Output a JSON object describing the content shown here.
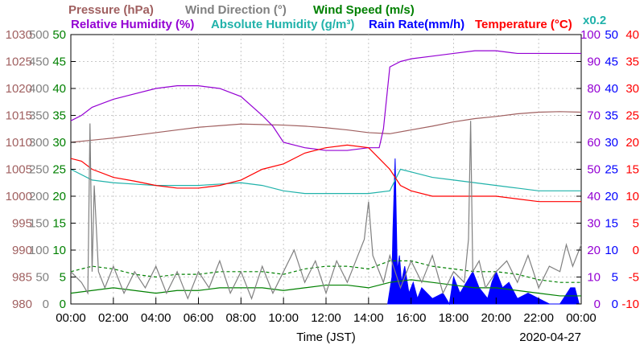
{
  "chart_data": {
    "type": "line",
    "date": "2020-04-27",
    "xlabel": "Time (JST)",
    "x_ticks": [
      "00:00",
      "02:00",
      "04:00",
      "06:00",
      "08:00",
      "10:00",
      "12:00",
      "14:00",
      "16:00",
      "18:00",
      "20:00",
      "22:00",
      "00:00"
    ],
    "x_range_hours": [
      0,
      24
    ],
    "grid": true,
    "legend": [
      {
        "label": "Pressure (hPa)",
        "color": "#a06060"
      },
      {
        "label": "Wind Direction (°)",
        "color": "#808080"
      },
      {
        "label": "Wind Speed (m/s)",
        "color": "#008000"
      },
      {
        "label": "Relative Humidity (%)",
        "color": "#9400d3"
      },
      {
        "label": "Absolute Humidity (g/m³)",
        "color": "#20b2aa"
      },
      {
        "label": "Rain Rate(mm/h)",
        "color": "#0000ff"
      },
      {
        "label": "Temperature (°C)",
        "color": "#ff0000"
      }
    ],
    "note": "x0.2",
    "axes": {
      "pressure": {
        "range": [
          980,
          1030
        ],
        "ticks": [
          "980",
          "985",
          "990",
          "995",
          "1000",
          "1005",
          "1010",
          "1015",
          "1020",
          "1025",
          "1030"
        ],
        "color": "#a06060"
      },
      "wind_direction": {
        "range": [
          0,
          500
        ],
        "ticks": [
          "0",
          "50",
          "100",
          "150",
          "200",
          "250",
          "300",
          "350",
          "400",
          "450",
          "500"
        ],
        "color": "#808080"
      },
      "wind_speed": {
        "range": [
          0,
          50
        ],
        "ticks": [
          "0",
          "5",
          "10",
          "15",
          "20",
          "25",
          "30",
          "35",
          "40",
          "45",
          "50"
        ],
        "color": "#008000"
      },
      "humidity": {
        "range": [
          0,
          100
        ],
        "ticks": [
          "0",
          "10",
          "20",
          "30",
          "40",
          "50",
          "60",
          "70",
          "80",
          "90",
          "100"
        ],
        "color": "#9400d3"
      },
      "rain_rate": {
        "range": [
          0,
          50
        ],
        "ticks": [
          "0",
          "5",
          "10",
          "15",
          "20",
          "25",
          "30",
          "35",
          "40",
          "45",
          "50"
        ],
        "color": "#0000ff"
      },
      "temperature": {
        "range": [
          -10,
          40
        ],
        "ticks": [
          "-10",
          "-5",
          "0",
          "5",
          "10",
          "15",
          "20",
          "25",
          "30",
          "35",
          "40"
        ],
        "color": "#ff0000"
      }
    },
    "series": [
      {
        "name": "Pressure (hPa)",
        "axis": "pressure",
        "color": "#a06060",
        "x": [
          0,
          1,
          2,
          3,
          4,
          5,
          6,
          7,
          8,
          9,
          10,
          11,
          12,
          13,
          14,
          15,
          16,
          17,
          18,
          19,
          20,
          21,
          22,
          23,
          24
        ],
        "y": [
          1010,
          1010.4,
          1010.8,
          1011.3,
          1011.8,
          1012.3,
          1012.8,
          1013.1,
          1013.4,
          1013.3,
          1013.2,
          1013,
          1012.7,
          1012.3,
          1011.8,
          1011.6,
          1012.3,
          1013,
          1013.8,
          1014.4,
          1014.8,
          1015.3,
          1015.6,
          1015.7,
          1015.6
        ]
      },
      {
        "name": "Relative Humidity (%)",
        "axis": "humidity",
        "color": "#9400d3",
        "x": [
          0,
          0.5,
          1,
          2,
          3,
          4,
          5,
          6,
          7,
          8,
          9,
          9.5,
          10,
          11,
          12,
          13,
          14,
          14.5,
          14.7,
          15,
          15.5,
          16,
          17,
          18,
          19,
          20,
          21,
          22,
          23,
          24
        ],
        "y": [
          68,
          70,
          73,
          76,
          78,
          80,
          81,
          81,
          80,
          77,
          70,
          66,
          60,
          58,
          57,
          57,
          58,
          58,
          65,
          88,
          90,
          91,
          92,
          93,
          94,
          94,
          93,
          93,
          93,
          93
        ]
      },
      {
        "name": "Absolute Humidity (g/m³)",
        "axis": "humidity",
        "color": "#20b2aa",
        "x": [
          0,
          1,
          2,
          3,
          4,
          5,
          6,
          7,
          8,
          9,
          10,
          11,
          12,
          13,
          14,
          15,
          15.5,
          16,
          17,
          18,
          19,
          20,
          21,
          22,
          23,
          24
        ],
        "y": [
          50,
          46,
          45,
          44.5,
          44,
          44,
          44,
          44.5,
          45,
          44,
          42,
          41,
          41,
          41,
          41,
          42,
          50,
          49,
          47,
          46,
          45,
          44,
          43,
          42,
          42,
          42
        ]
      },
      {
        "name": "Temperature (°C)",
        "axis": "temperature",
        "color": "#ff0000",
        "x": [
          0,
          0.5,
          1,
          2,
          3,
          4,
          5,
          6,
          7,
          8,
          9,
          10,
          11,
          12,
          13,
          14,
          14.5,
          15,
          15.5,
          16,
          17,
          18,
          19,
          20,
          21,
          22,
          23,
          24
        ],
        "y": [
          17,
          16.5,
          15,
          13.5,
          12.8,
          12,
          11.5,
          11.5,
          12,
          13,
          15,
          16,
          18,
          19,
          19.5,
          19,
          17,
          15,
          12,
          11,
          10,
          10,
          10,
          10,
          9.5,
          9,
          9,
          9
        ]
      },
      {
        "name": "Wind Speed (m/s)",
        "axis": "wind_speed",
        "color": "#008000",
        "x": [
          0,
          1,
          2,
          3,
          4,
          5,
          6,
          7,
          8,
          9,
          10,
          11,
          12,
          13,
          14,
          15,
          16,
          17,
          18,
          19,
          20,
          21,
          22,
          23,
          24
        ],
        "y": [
          2,
          2.5,
          3,
          2.5,
          2,
          2.5,
          2.5,
          3,
          3,
          3,
          2.5,
          3,
          3.5,
          3.5,
          3,
          4,
          4.5,
          4,
          3.5,
          3,
          3,
          2.5,
          2,
          1.5,
          1.5
        ]
      },
      {
        "name": "Wind Speed (m/s) gust",
        "axis": "wind_speed",
        "color": "#008000",
        "dash": true,
        "x": [
          0,
          1,
          2,
          3,
          4,
          5,
          6,
          7,
          8,
          9,
          10,
          11,
          12,
          13,
          14,
          15,
          16,
          17,
          18,
          19,
          20,
          21,
          22,
          23,
          24
        ],
        "y": [
          6,
          7,
          6.5,
          5.5,
          5,
          5.5,
          5.5,
          6,
          6,
          6,
          5.5,
          6.5,
          7,
          7,
          6.5,
          8,
          8,
          7,
          6.5,
          6,
          6,
          5.5,
          4.5,
          4,
          4
        ]
      },
      {
        "name": "Wind Direction (°)",
        "axis": "wind_direction",
        "color": "#808080",
        "x": [
          0,
          0.5,
          0.8,
          0.9,
          1.0,
          1.1,
          1.3,
          1.6,
          2,
          2.5,
          3,
          3.5,
          4,
          4.5,
          5,
          5.5,
          6,
          6.5,
          7,
          7.5,
          8,
          8.5,
          9,
          9.5,
          10,
          10.5,
          11,
          11.5,
          12,
          12.5,
          13,
          13.5,
          13.8,
          14,
          14.2,
          14.4,
          14.7,
          15,
          15.5,
          16,
          16.5,
          17,
          17.5,
          18,
          18.5,
          18.7,
          18.8,
          18.9,
          19.2,
          19.5,
          20,
          20.5,
          21,
          21.5,
          22,
          22.5,
          23,
          23.3,
          23.6,
          24
        ],
        "y": [
          60,
          40,
          20,
          335,
          60,
          220,
          60,
          30,
          70,
          20,
          60,
          30,
          70,
          20,
          60,
          10,
          60,
          30,
          80,
          20,
          60,
          10,
          70,
          20,
          60,
          100,
          40,
          80,
          20,
          80,
          40,
          90,
          120,
          190,
          90,
          70,
          40,
          90,
          30,
          80,
          40,
          90,
          20,
          60,
          40,
          120,
          340,
          60,
          80,
          30,
          60,
          80,
          40,
          90,
          30,
          70,
          60,
          110,
          70,
          110
        ]
      }
    ],
    "rain_rate": {
      "axis": "rain_rate",
      "color": "#0000ff",
      "x": [
        14.9,
        15.1,
        15.15,
        15.25,
        15.35,
        15.45,
        15.55,
        15.7,
        15.9,
        16.1,
        16.3,
        16.5,
        17,
        17.5,
        17.8,
        18,
        18.3,
        18.6,
        18.9,
        19.2,
        19.6,
        19.8,
        20,
        20.3,
        20.6,
        21,
        21.5,
        22,
        22.5,
        23,
        23.5,
        23.7,
        23.9
      ],
      "y": [
        0,
        5,
        14,
        27,
        6,
        9,
        4,
        7,
        2,
        4,
        1,
        3,
        1,
        2,
        0,
        5,
        2,
        4,
        6,
        3,
        1,
        4,
        6,
        3,
        4,
        1,
        2,
        1,
        0,
        0,
        3,
        3,
        0
      ]
    }
  }
}
